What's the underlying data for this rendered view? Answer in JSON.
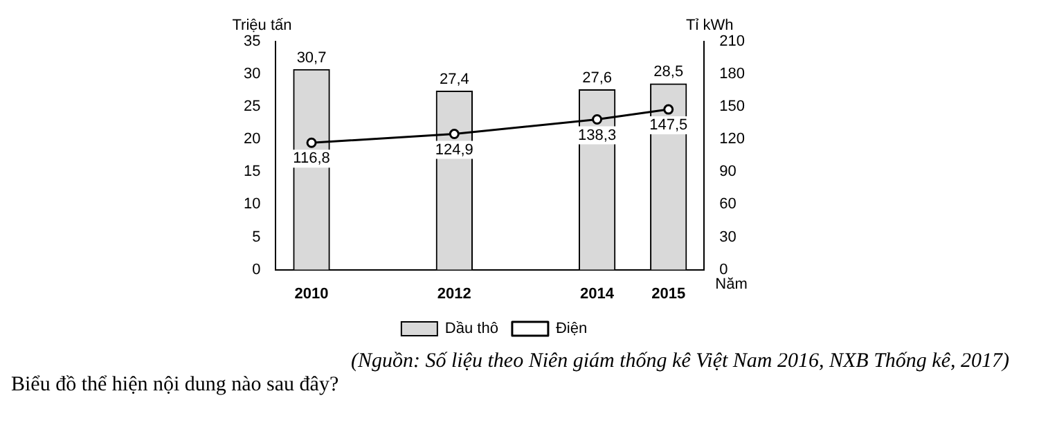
{
  "chart_data": {
    "type": "bar",
    "x": [
      2010,
      2012,
      2014,
      2015
    ],
    "xlim": [
      2009.5,
      2015.5
    ],
    "xticks": [
      2010,
      2012,
      2014,
      2015
    ],
    "xlabel": "Năm",
    "ylabel": "Triệu tấn",
    "y2label": "Tỉ kWh",
    "ylim": [
      0,
      35
    ],
    "yticks": [
      0,
      5,
      10,
      15,
      20,
      25,
      30,
      35
    ],
    "y2lim": [
      0,
      210
    ],
    "y2ticks": [
      0,
      30,
      60,
      90,
      120,
      150,
      180,
      210
    ],
    "series": [
      {
        "name": "Dầu thô",
        "color": "#d9d9d9",
        "values": [
          30.7,
          27.4,
          27.6,
          28.5
        ],
        "value_labels": [
          "30,7",
          "27,4",
          "27,6",
          "28,5"
        ]
      },
      {
        "name": "Điện",
        "type": "line",
        "axis": "y2",
        "color": "#000000",
        "values": [
          116.8,
          124.9,
          138.3,
          147.5
        ],
        "value_labels": [
          "116,8",
          "124,9",
          "138,3",
          "147,5"
        ]
      }
    ],
    "marker": "circle",
    "grid": false,
    "legend": "bottom",
    "annotations": [
      "(Nguồn: Số liệu theo Niên giám thống kê Việt Nam 2016, NXB Thống kê, 2017)",
      "Biểu đồ thể hiện nội dung nào sau đây?"
    ]
  }
}
